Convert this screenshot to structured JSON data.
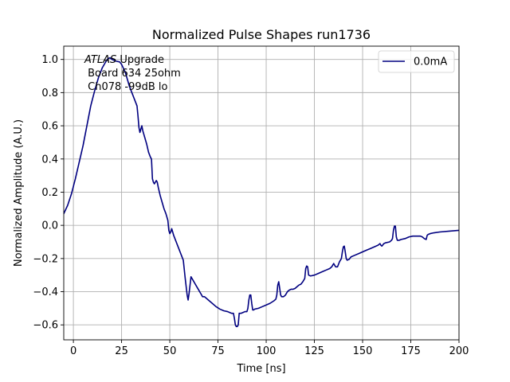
{
  "chart_data": {
    "type": "line",
    "title": "Normalized Pulse Shapes run1736",
    "xlabel": "Time [ns]",
    "ylabel": "Normalized Amplitude (A.U.)",
    "xlim": [
      -5,
      200
    ],
    "ylim": [
      -0.69,
      1.08
    ],
    "grid": true,
    "xticks": [
      0,
      25,
      50,
      75,
      100,
      125,
      150,
      175,
      200
    ],
    "xtick_labels": [
      "0",
      "25",
      "50",
      "75",
      "100",
      "125",
      "150",
      "175",
      "200"
    ],
    "yticks": [
      -0.6,
      -0.4,
      -0.2,
      0.0,
      0.2,
      0.4,
      0.6,
      0.8,
      1.0
    ],
    "ytick_labels": [
      "−0.6",
      "−0.4",
      "−0.2",
      "0.0",
      "0.2",
      "0.4",
      "0.6",
      "0.8",
      "1.0"
    ],
    "annotation": {
      "atlas": "ATLAS",
      "line1_rest": " Upgrade",
      "line2": " Board 634 25ohm",
      "line3": " Ch078 -99dB lo"
    },
    "legend": {
      "location": "top-right",
      "entries": [
        "0.0mA"
      ]
    },
    "series": [
      {
        "name": "0.0mA",
        "color": "#000080",
        "x": [
          -5,
          -3,
          -1,
          1,
          3,
          5,
          7,
          9,
          11,
          13,
          15,
          17,
          18,
          19,
          20,
          22,
          24,
          25,
          27,
          29,
          31,
          32,
          33,
          33.5,
          34,
          34.5,
          35,
          35.5,
          36,
          37,
          38,
          39,
          40,
          40.5,
          41,
          41.5,
          42,
          43,
          43.5,
          44,
          45,
          46,
          47,
          48,
          49,
          49.5,
          50,
          50.5,
          51,
          51.5,
          52,
          53,
          54,
          55,
          56,
          57,
          58,
          59,
          59.5,
          60,
          60.5,
          61,
          62,
          63,
          64,
          65,
          66,
          67,
          68,
          69,
          70,
          72,
          74,
          76,
          78,
          80,
          81,
          82,
          83,
          83.5,
          84,
          84.5,
          85,
          85.5,
          86,
          87,
          88,
          89,
          90,
          90.5,
          91,
          91.5,
          92,
          92.5,
          93,
          93.5,
          94,
          96,
          98,
          100,
          102,
          104,
          105,
          105.5,
          106,
          106.5,
          107,
          107.5,
          108,
          108.5,
          109,
          110,
          111,
          112,
          113,
          114,
          115,
          116,
          117,
          118,
          119,
          119.5,
          120,
          120.5,
          121,
          121.5,
          122,
          123,
          125,
          127,
          129,
          131,
          133,
          134,
          134.5,
          135,
          136,
          137,
          138,
          138.5,
          139,
          139.5,
          140,
          140.5,
          141,
          141.5,
          142,
          143,
          144,
          146,
          148,
          150,
          152,
          154,
          156,
          158,
          159,
          159.5,
          160,
          161,
          162,
          164,
          165,
          165.5,
          166,
          166.5,
          167,
          167.5,
          168,
          169,
          170,
          172,
          174,
          176,
          178,
          180,
          181,
          182,
          183,
          183.5,
          184,
          185,
          187,
          190,
          195,
          200
        ],
        "y": [
          0.07,
          0.12,
          0.19,
          0.28,
          0.38,
          0.48,
          0.6,
          0.72,
          0.81,
          0.89,
          0.95,
          0.99,
          1.005,
          1.01,
          1.0,
          0.99,
          0.985,
          0.97,
          0.92,
          0.84,
          0.78,
          0.75,
          0.72,
          0.66,
          0.59,
          0.56,
          0.58,
          0.6,
          0.57,
          0.53,
          0.49,
          0.44,
          0.41,
          0.4,
          0.28,
          0.26,
          0.25,
          0.27,
          0.26,
          0.23,
          0.18,
          0.14,
          0.1,
          0.07,
          0.03,
          -0.03,
          -0.05,
          -0.04,
          -0.02,
          -0.04,
          -0.06,
          -0.09,
          -0.12,
          -0.15,
          -0.18,
          -0.21,
          -0.32,
          -0.42,
          -0.45,
          -0.41,
          -0.36,
          -0.31,
          -0.33,
          -0.35,
          -0.37,
          -0.39,
          -0.41,
          -0.43,
          -0.43,
          -0.44,
          -0.45,
          -0.47,
          -0.49,
          -0.505,
          -0.515,
          -0.52,
          -0.525,
          -0.53,
          -0.53,
          -0.56,
          -0.6,
          -0.61,
          -0.61,
          -0.6,
          -0.53,
          -0.53,
          -0.525,
          -0.52,
          -0.52,
          -0.5,
          -0.45,
          -0.42,
          -0.42,
          -0.47,
          -0.51,
          -0.51,
          -0.505,
          -0.5,
          -0.49,
          -0.48,
          -0.47,
          -0.455,
          -0.445,
          -0.42,
          -0.36,
          -0.34,
          -0.38,
          -0.42,
          -0.43,
          -0.43,
          -0.43,
          -0.42,
          -0.4,
          -0.39,
          -0.385,
          -0.385,
          -0.38,
          -0.37,
          -0.36,
          -0.355,
          -0.34,
          -0.33,
          -0.32,
          -0.26,
          -0.245,
          -0.25,
          -0.3,
          -0.305,
          -0.3,
          -0.29,
          -0.28,
          -0.27,
          -0.26,
          -0.25,
          -0.24,
          -0.23,
          -0.25,
          -0.25,
          -0.22,
          -0.21,
          -0.2,
          -0.16,
          -0.13,
          -0.125,
          -0.16,
          -0.2,
          -0.21,
          -0.205,
          -0.19,
          -0.18,
          -0.17,
          -0.16,
          -0.15,
          -0.14,
          -0.13,
          -0.12,
          -0.11,
          -0.12,
          -0.125,
          -0.11,
          -0.105,
          -0.1,
          -0.09,
          -0.08,
          -0.03,
          -0.005,
          -0.005,
          -0.07,
          -0.09,
          -0.09,
          -0.085,
          -0.08,
          -0.07,
          -0.065,
          -0.065,
          -0.065,
          -0.07,
          -0.08,
          -0.085,
          -0.06,
          -0.055,
          -0.05,
          -0.045,
          -0.04,
          -0.035,
          -0.03
        ]
      }
    ]
  }
}
